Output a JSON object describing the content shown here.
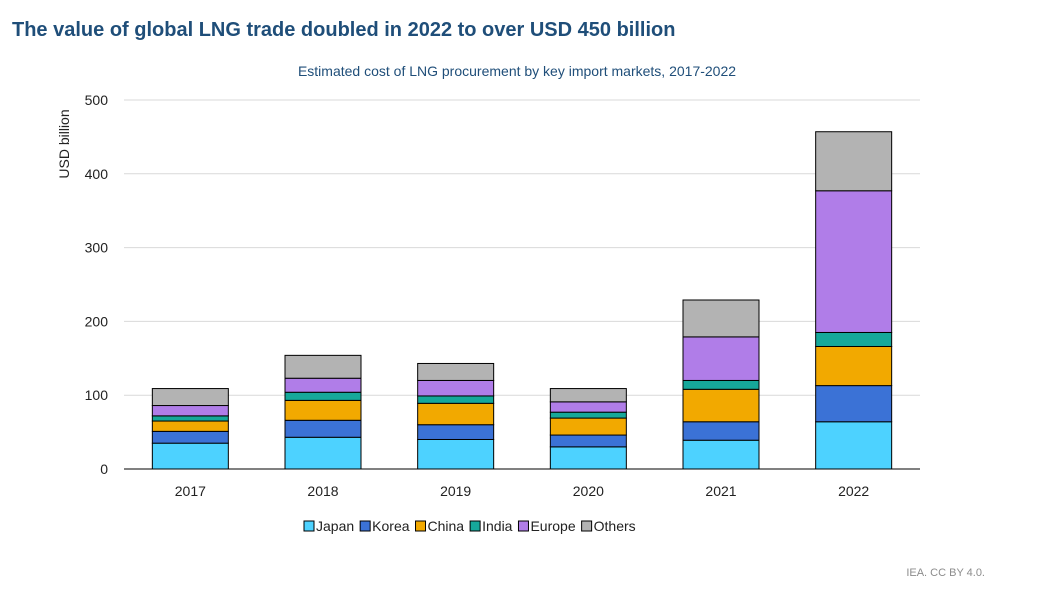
{
  "page": {
    "headline": "The value of global LNG trade doubled in 2022 to over USD 450 billion",
    "credit": "IEA. CC BY 4.0."
  },
  "chart_data": {
    "type": "bar",
    "stacked": true,
    "title": "Estimated cost of LNG procurement by key import markets, 2017-2022",
    "xlabel": "",
    "ylabel": "USD billion",
    "ylim": [
      0,
      500
    ],
    "yticks": [
      0,
      100,
      200,
      300,
      400,
      500
    ],
    "grid": true,
    "legend_position": "bottom",
    "categories": [
      "2017",
      "2018",
      "2019",
      "2020",
      "2021",
      "2022"
    ],
    "series": [
      {
        "name": "Japan",
        "color": "#4dd2ff",
        "values": [
          35,
          43,
          40,
          30,
          39,
          64
        ]
      },
      {
        "name": "Korea",
        "color": "#3b72d6",
        "values": [
          16,
          23,
          20,
          16,
          25,
          49
        ]
      },
      {
        "name": "China",
        "color": "#f2a900",
        "values": [
          14,
          27,
          29,
          23,
          44,
          53
        ]
      },
      {
        "name": "India",
        "color": "#16a89a",
        "values": [
          7,
          11,
          10,
          8,
          12,
          19
        ]
      },
      {
        "name": "Europe",
        "color": "#b07de8",
        "values": [
          14,
          19,
          21,
          14,
          59,
          192
        ]
      },
      {
        "name": "Others",
        "color": "#b3b3b3",
        "values": [
          23,
          31,
          23,
          18,
          50,
          80
        ]
      }
    ]
  }
}
